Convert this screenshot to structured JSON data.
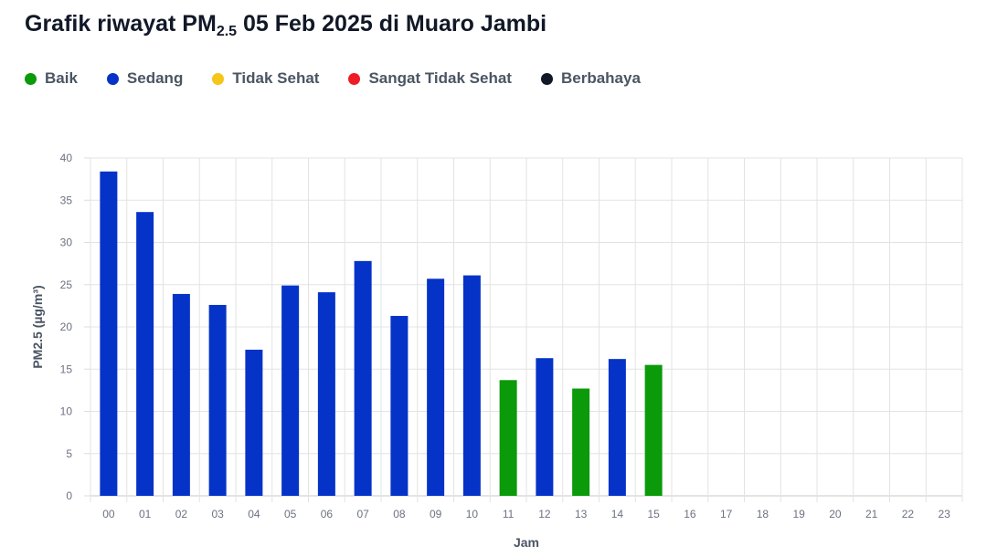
{
  "header": {
    "title_pre": "Grafik riwayat PM",
    "title_sub": "2.5",
    "title_post": " 05 Feb 2025 di Muaro Jambi"
  },
  "legend": [
    {
      "label": "Baik",
      "color": "#0a9a0a"
    },
    {
      "label": "Sedang",
      "color": "#0533c7"
    },
    {
      "label": "Tidak Sehat",
      "color": "#f5c518"
    },
    {
      "label": "Sangat Tidak Sehat",
      "color": "#ee1c25"
    },
    {
      "label": "Berbahaya",
      "color": "#111827"
    }
  ],
  "chart_data": {
    "type": "bar",
    "xlabel": "Jam",
    "ylabel": "PM2.5 (µg/m³)",
    "ylim": [
      0,
      40
    ],
    "yticks": [
      0,
      5,
      10,
      15,
      20,
      25,
      30,
      35,
      40
    ],
    "grid": true,
    "legend_position": "top-left",
    "categories": [
      "00",
      "01",
      "02",
      "03",
      "04",
      "05",
      "06",
      "07",
      "08",
      "09",
      "10",
      "11",
      "12",
      "13",
      "14",
      "15",
      "16",
      "17",
      "18",
      "19",
      "20",
      "21",
      "22",
      "23"
    ],
    "values": [
      38.4,
      33.6,
      23.9,
      22.6,
      17.3,
      24.9,
      24.1,
      27.8,
      21.3,
      25.7,
      26.1,
      13.7,
      16.3,
      12.7,
      16.2,
      15.5,
      null,
      null,
      null,
      null,
      null,
      null,
      null,
      null
    ],
    "status": [
      "Sedang",
      "Sedang",
      "Sedang",
      "Sedang",
      "Sedang",
      "Sedang",
      "Sedang",
      "Sedang",
      "Sedang",
      "Sedang",
      "Sedang",
      "Baik",
      "Sedang",
      "Baik",
      "Sedang",
      "Baik",
      null,
      null,
      null,
      null,
      null,
      null,
      null,
      null
    ]
  }
}
